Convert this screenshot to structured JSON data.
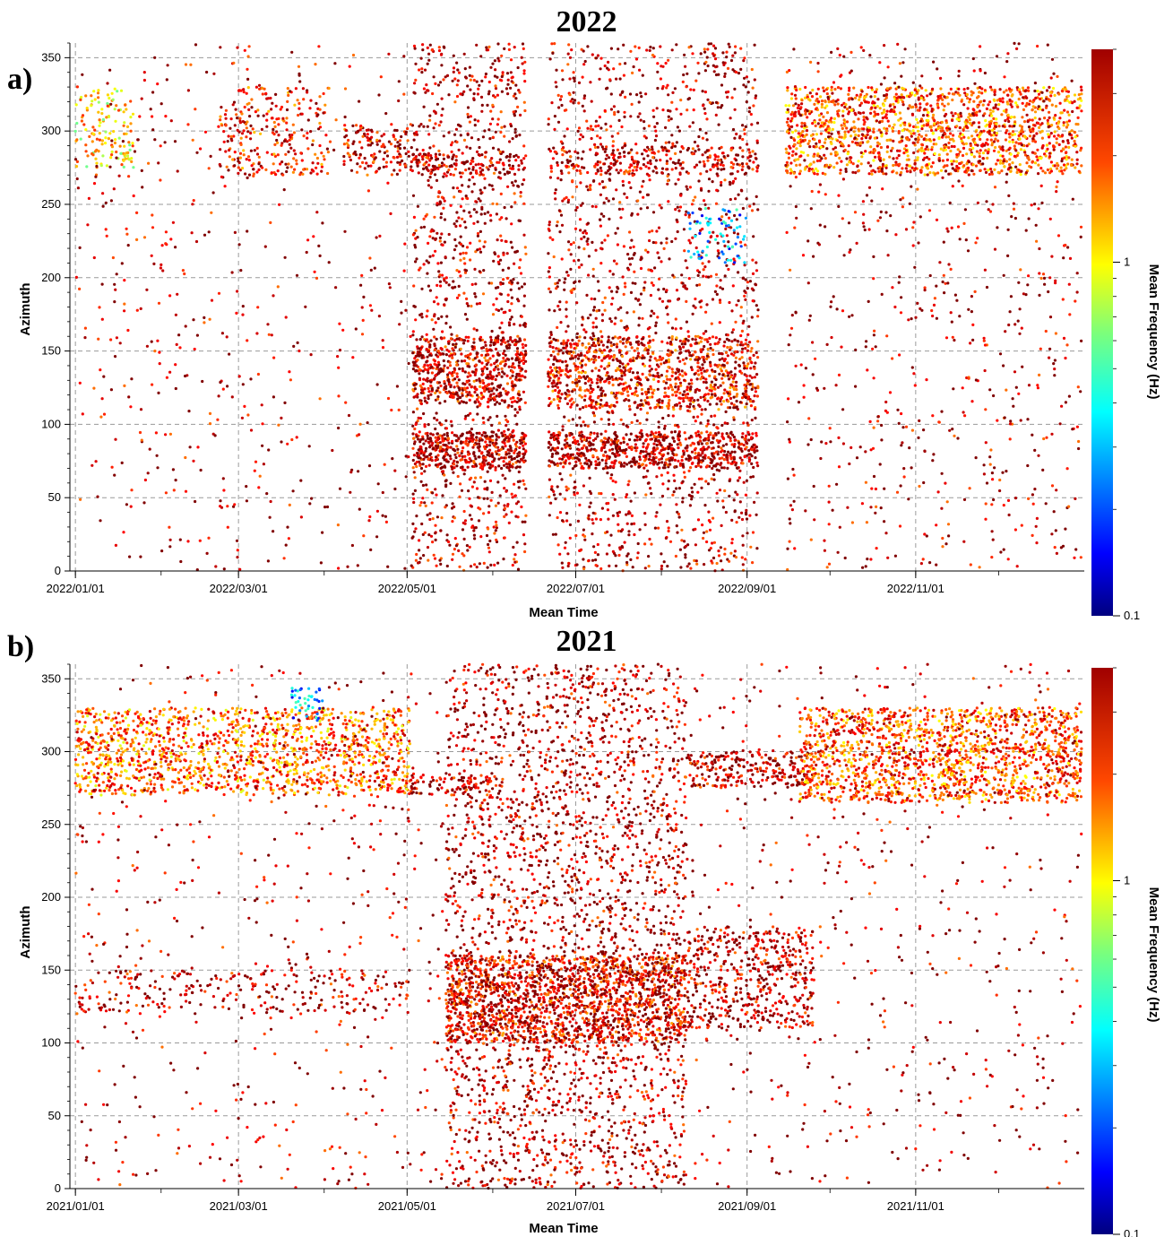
{
  "chart_data": [
    {
      "type": "scatter",
      "panel_label": "a)",
      "title": "2022",
      "xlabel": "Mean Time",
      "ylabel": "Azimuth",
      "ylim": [
        0,
        360
      ],
      "yticks": [
        0,
        50,
        100,
        150,
        200,
        250,
        300,
        350
      ],
      "xlim": [
        "2022-01-01",
        "2022-12-31"
      ],
      "xticks": [
        "2022/01/01",
        "2022/03/01",
        "2022/05/01",
        "2022/07/01",
        "2022/09/01",
        "2022/11/01"
      ],
      "grid": true,
      "colorbar": {
        "label": "Mean Frequency (Hz)",
        "scale": "log",
        "range": [
          0.1,
          4
        ],
        "ticks": [
          "1",
          "0.1"
        ],
        "colormap": "jet"
      },
      "clusters": [
        {
          "start": "2022-01-01",
          "end": "2022-01-22",
          "az": [
            275,
            330
          ],
          "freq": 1.2,
          "n": 140
        },
        {
          "start": "2022-02-22",
          "end": "2022-04-03",
          "az": [
            270,
            330
          ],
          "freq": 2.5,
          "n": 260
        },
        {
          "start": "2022-04-08",
          "end": "2022-05-03",
          "az": [
            270,
            305
          ],
          "freq": 3.0,
          "n": 140
        },
        {
          "start": "2022-05-03",
          "end": "2022-06-13",
          "az": [
            270,
            285
          ],
          "freq": 3.2,
          "n": 120
        },
        {
          "start": "2022-05-03",
          "end": "2022-06-13",
          "az": [
            115,
            160
          ],
          "freq": 3.0,
          "n": 460
        },
        {
          "start": "2022-05-03",
          "end": "2022-06-13",
          "az": [
            70,
            95
          ],
          "freq": 3.4,
          "n": 380
        },
        {
          "start": "2022-05-03",
          "end": "2022-06-13",
          "az": [
            0,
            360
          ],
          "freq": 3.4,
          "n": 1200
        },
        {
          "start": "2022-06-21",
          "end": "2022-09-05",
          "az": [
            270,
            290
          ],
          "freq": 3.3,
          "n": 220
        },
        {
          "start": "2022-06-21",
          "end": "2022-09-05",
          "az": [
            110,
            160
          ],
          "freq": 2.6,
          "n": 800
        },
        {
          "start": "2022-06-21",
          "end": "2022-09-05",
          "az": [
            70,
            95
          ],
          "freq": 3.4,
          "n": 620
        },
        {
          "start": "2022-06-21",
          "end": "2022-09-05",
          "az": [
            0,
            360
          ],
          "freq": 3.4,
          "n": 1700
        },
        {
          "start": "2022-08-10",
          "end": "2022-09-01",
          "az": [
            210,
            250
          ],
          "freq": 0.3,
          "n": 70
        },
        {
          "start": "2022-09-15",
          "end": "2022-12-31",
          "az": [
            270,
            330
          ],
          "freq": 2.0,
          "n": 1500
        },
        {
          "start": "2022-09-15",
          "end": "2022-12-31",
          "az": [
            0,
            360
          ],
          "freq": 3.4,
          "n": 700
        },
        {
          "start": "2022-01-01",
          "end": "2022-05-03",
          "az": [
            0,
            360
          ],
          "freq": 3.4,
          "n": 500
        }
      ]
    },
    {
      "type": "scatter",
      "panel_label": "b)",
      "title": "2021",
      "xlabel": "Mean Time",
      "ylabel": "Azimuth",
      "ylim": [
        0,
        360
      ],
      "yticks": [
        0,
        50,
        100,
        150,
        200,
        250,
        300,
        350
      ],
      "xlim": [
        "2021-01-01",
        "2021-12-31"
      ],
      "xticks": [
        "2021/01/01",
        "2021/03/01",
        "2021/05/01",
        "2021/07/01",
        "2021/09/01",
        "2021/11/01"
      ],
      "grid": true,
      "colorbar": {
        "label": "Mean Frequency (Hz)",
        "scale": "log",
        "range": [
          0.1,
          4
        ],
        "ticks": [
          "1",
          "0.1"
        ],
        "colormap": "jet"
      },
      "clusters": [
        {
          "start": "2021-01-01",
          "end": "2021-05-02",
          "az": [
            270,
            330
          ],
          "freq": 1.8,
          "n": 1400
        },
        {
          "start": "2021-03-20",
          "end": "2021-04-01",
          "az": [
            320,
            345
          ],
          "freq": 0.3,
          "n": 40
        },
        {
          "start": "2021-05-02",
          "end": "2021-06-01",
          "az": [
            270,
            285
          ],
          "freq": 3.3,
          "n": 80
        },
        {
          "start": "2021-05-15",
          "end": "2021-08-10",
          "az": [
            100,
            160
          ],
          "freq": 2.8,
          "n": 1600
        },
        {
          "start": "2021-05-15",
          "end": "2021-08-10",
          "az": [
            0,
            360
          ],
          "freq": 3.4,
          "n": 2400
        },
        {
          "start": "2021-08-10",
          "end": "2021-09-25",
          "az": [
            110,
            180
          ],
          "freq": 3.4,
          "n": 500
        },
        {
          "start": "2021-08-10",
          "end": "2021-09-25",
          "az": [
            275,
            300
          ],
          "freq": 3.4,
          "n": 250
        },
        {
          "start": "2021-09-20",
          "end": "2021-12-31",
          "az": [
            265,
            330
          ],
          "freq": 2.0,
          "n": 1600
        },
        {
          "start": "2021-01-01",
          "end": "2021-12-31",
          "az": [
            0,
            360
          ],
          "freq": 3.4,
          "n": 1400
        },
        {
          "start": "2021-01-01",
          "end": "2021-05-02",
          "az": [
            120,
            150
          ],
          "freq": 3.3,
          "n": 250
        }
      ]
    }
  ]
}
